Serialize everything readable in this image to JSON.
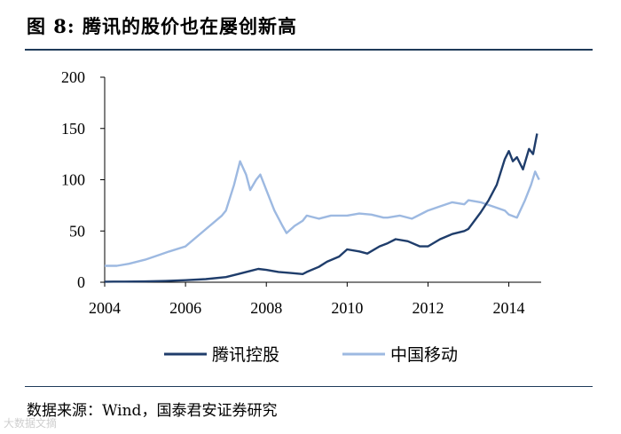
{
  "figure": {
    "title": "图 8: 腾讯的股价也在屡创新高",
    "source": "数据来源：Wind，国泰君安证券研究",
    "watermark": "大数据文摘"
  },
  "colors": {
    "tencent": "#1f3d6b",
    "mobile": "#9db9e1",
    "axis": "#000000",
    "rule": "#1f3b5a"
  },
  "chart_data": {
    "type": "line",
    "title": "",
    "xlabel": "",
    "ylabel": "",
    "xlim": [
      2004,
      2014.8
    ],
    "ylim": [
      0,
      200
    ],
    "xticks": [
      2004,
      2006,
      2008,
      2010,
      2012,
      2014
    ],
    "yticks": [
      0,
      50,
      100,
      150,
      200
    ],
    "grid": false,
    "legend": "bottom",
    "series": [
      {
        "name": "腾讯控股",
        "color": "#1f3d6b",
        "points": [
          [
            2004.0,
            0.5
          ],
          [
            2004.5,
            0.6
          ],
          [
            2005.0,
            0.8
          ],
          [
            2005.5,
            1.2
          ],
          [
            2006.0,
            2
          ],
          [
            2006.5,
            3
          ],
          [
            2007.0,
            5
          ],
          [
            2007.3,
            8
          ],
          [
            2007.6,
            11
          ],
          [
            2007.8,
            13
          ],
          [
            2008.0,
            12
          ],
          [
            2008.3,
            10
          ],
          [
            2008.6,
            9
          ],
          [
            2008.9,
            8
          ],
          [
            2009.0,
            10
          ],
          [
            2009.3,
            15
          ],
          [
            2009.5,
            20
          ],
          [
            2009.8,
            25
          ],
          [
            2010.0,
            32
          ],
          [
            2010.3,
            30
          ],
          [
            2010.5,
            28
          ],
          [
            2010.8,
            35
          ],
          [
            2011.0,
            38
          ],
          [
            2011.2,
            42
          ],
          [
            2011.5,
            40
          ],
          [
            2011.8,
            35
          ],
          [
            2012.0,
            35
          ],
          [
            2012.3,
            42
          ],
          [
            2012.6,
            47
          ],
          [
            2012.9,
            50
          ],
          [
            2013.0,
            52
          ],
          [
            2013.3,
            68
          ],
          [
            2013.5,
            80
          ],
          [
            2013.7,
            95
          ],
          [
            2013.9,
            120
          ],
          [
            2014.0,
            128
          ],
          [
            2014.1,
            118
          ],
          [
            2014.2,
            122
          ],
          [
            2014.35,
            110
          ],
          [
            2014.5,
            130
          ],
          [
            2014.6,
            125
          ],
          [
            2014.7,
            145
          ]
        ]
      },
      {
        "name": "中国移动",
        "color": "#9db9e1",
        "points": [
          [
            2004.0,
            16
          ],
          [
            2004.3,
            16
          ],
          [
            2004.6,
            18
          ],
          [
            2005.0,
            22
          ],
          [
            2005.3,
            26
          ],
          [
            2005.6,
            30
          ],
          [
            2006.0,
            35
          ],
          [
            2006.3,
            45
          ],
          [
            2006.6,
            55
          ],
          [
            2006.9,
            65
          ],
          [
            2007.0,
            70
          ],
          [
            2007.2,
            95
          ],
          [
            2007.35,
            118
          ],
          [
            2007.5,
            105
          ],
          [
            2007.6,
            90
          ],
          [
            2007.75,
            100
          ],
          [
            2007.85,
            105
          ],
          [
            2008.0,
            90
          ],
          [
            2008.2,
            70
          ],
          [
            2008.4,
            55
          ],
          [
            2008.5,
            48
          ],
          [
            2008.7,
            55
          ],
          [
            2008.9,
            60
          ],
          [
            2009.0,
            65
          ],
          [
            2009.3,
            62
          ],
          [
            2009.6,
            65
          ],
          [
            2010.0,
            65
          ],
          [
            2010.3,
            67
          ],
          [
            2010.6,
            66
          ],
          [
            2010.9,
            63
          ],
          [
            2011.0,
            63
          ],
          [
            2011.3,
            65
          ],
          [
            2011.6,
            62
          ],
          [
            2011.9,
            68
          ],
          [
            2012.0,
            70
          ],
          [
            2012.3,
            74
          ],
          [
            2012.6,
            78
          ],
          [
            2012.9,
            76
          ],
          [
            2013.0,
            80
          ],
          [
            2013.3,
            78
          ],
          [
            2013.6,
            74
          ],
          [
            2013.9,
            70
          ],
          [
            2014.0,
            66
          ],
          [
            2014.2,
            63
          ],
          [
            2014.4,
            80
          ],
          [
            2014.55,
            95
          ],
          [
            2014.65,
            108
          ],
          [
            2014.75,
            100
          ]
        ]
      }
    ]
  }
}
